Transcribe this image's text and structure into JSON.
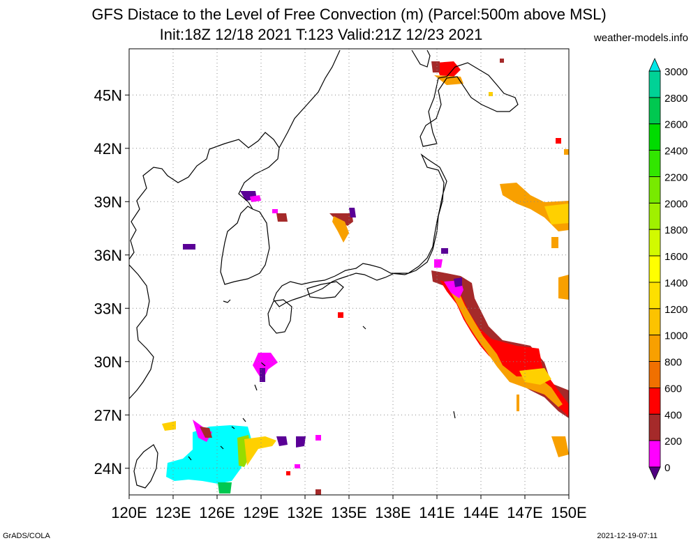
{
  "header": {
    "title_line1": "GFS Distace to the Level of Free Convection (m) (Parcel:500m above MSL)",
    "title_line2": "Init:18Z 12/18 2021 T:123 Valid:21Z 12/23 2021",
    "site": "weather-models.info"
  },
  "footer": {
    "left": "GrADS/COLA",
    "right": "2021-12-19-07:11"
  },
  "axes": {
    "lon_ticks": [
      "120E",
      "123E",
      "126E",
      "129E",
      "132E",
      "135E",
      "138E",
      "141E",
      "144E",
      "147E",
      "150E"
    ],
    "lat_ticks": [
      "45N",
      "42N",
      "39N",
      "36N",
      "33N",
      "30N",
      "27N",
      "24N"
    ],
    "lon_values": [
      120,
      123,
      126,
      129,
      132,
      135,
      138,
      141,
      144,
      147,
      150
    ],
    "lat_values": [
      45,
      42,
      39,
      36,
      33,
      30,
      27,
      24
    ],
    "lon_range": [
      120,
      150
    ],
    "lat_range": [
      22.5,
      47.6
    ],
    "grid": true
  },
  "colorbar": {
    "labels": [
      "3000",
      "2800",
      "2600",
      "2400",
      "2200",
      "2000",
      "1800",
      "1600",
      "1400",
      "1200",
      "1000",
      "800",
      "600",
      "400",
      "200",
      "0"
    ],
    "colors": [
      "#00e6e6",
      "#00d296",
      "#00c850",
      "#00dc00",
      "#32e600",
      "#78ea00",
      "#a0f000",
      "#d2fa00",
      "#ffff00",
      "#fde000",
      "#fcc300",
      "#f8a000",
      "#f07000",
      "#ff0000",
      "#a52a2a",
      "#ff00ff",
      "#5a0096",
      "#500080"
    ]
  },
  "fields": {
    "colors": {
      "cyan": "#00ffff",
      "green": "#00c850",
      "lgreen": "#96dc00",
      "yellow": "#ffd000",
      "orange": "#f8a000",
      "red": "#ff0000",
      "brown": "#a52a2a",
      "magenta": "#ff00ff",
      "purple": "#5a0096"
    }
  }
}
